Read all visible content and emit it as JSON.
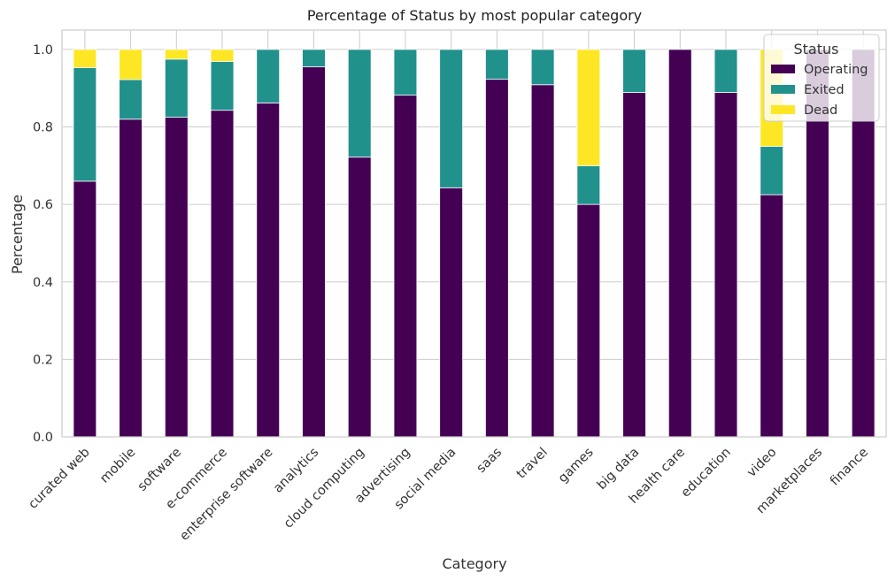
{
  "chart_data": {
    "type": "bar",
    "stacked": true,
    "title": "Percentage of Status by most popular category",
    "xlabel": "Category",
    "ylabel": "Percentage",
    "ylim": [
      0,
      1.05
    ],
    "yticks": [
      "0.0",
      "0.2",
      "0.4",
      "0.6",
      "0.8",
      "1.0"
    ],
    "grid": true,
    "legend": {
      "title": "Status",
      "placement": "top-right"
    },
    "categories": [
      "curated web",
      "mobile",
      "software",
      "e-commerce",
      "enterprise software",
      "analytics",
      "cloud computing",
      "advertising",
      "social media",
      "saas",
      "travel",
      "games",
      "big data",
      "health care",
      "education",
      "video",
      "marketplaces",
      "finance"
    ],
    "series": [
      {
        "name": "Operating",
        "color": "#440154",
        "values": [
          0.66,
          0.82,
          0.825,
          0.843,
          0.862,
          0.955,
          0.722,
          0.882,
          0.643,
          0.923,
          0.909,
          0.6,
          0.889,
          1.0,
          0.889,
          0.625,
          1.0,
          1.0
        ]
      },
      {
        "name": "Exited",
        "color": "#21918c",
        "values": [
          0.293,
          0.102,
          0.15,
          0.126,
          0.138,
          0.045,
          0.278,
          0.118,
          0.357,
          0.077,
          0.091,
          0.1,
          0.111,
          0.0,
          0.111,
          0.125,
          0.0,
          0.0
        ]
      },
      {
        "name": "Dead",
        "color": "#fde725",
        "values": [
          0.047,
          0.078,
          0.025,
          0.031,
          0.0,
          0.0,
          0.0,
          0.0,
          0.0,
          0.0,
          0.0,
          0.3,
          0.0,
          0.0,
          0.0,
          0.25,
          0.0,
          0.0
        ]
      }
    ]
  }
}
